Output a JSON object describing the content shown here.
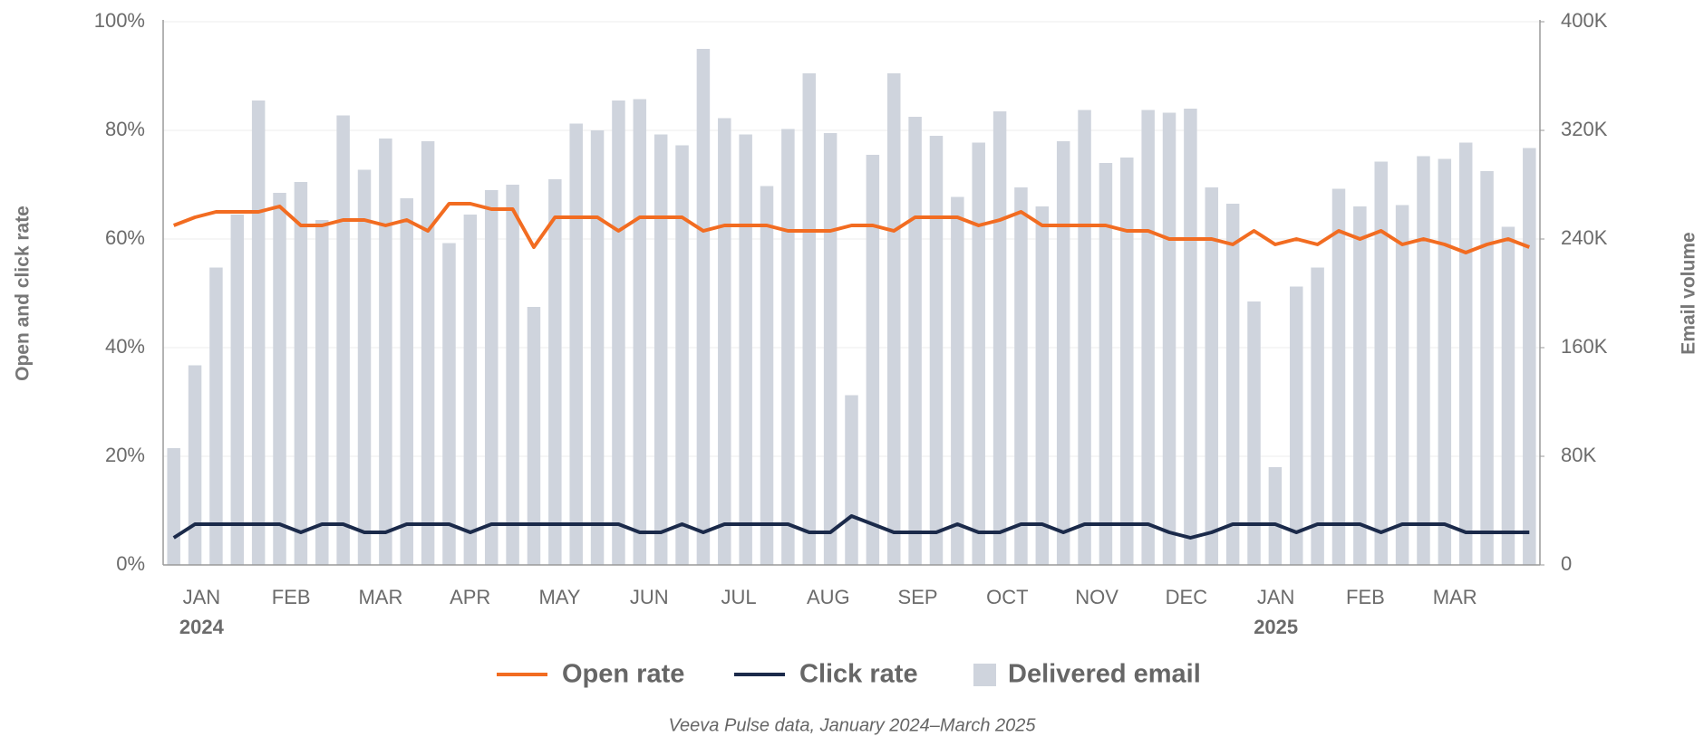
{
  "chart_data": {
    "type": "combo",
    "ylabel": "Open and click rate",
    "y2label": "Email volume",
    "note": "Veeva Pulse data, January 2024–March 2025",
    "months": [
      {
        "label": "JAN",
        "year": "2024"
      },
      {
        "label": "FEB"
      },
      {
        "label": "MAR"
      },
      {
        "label": "APR"
      },
      {
        "label": "MAY"
      },
      {
        "label": "JUN"
      },
      {
        "label": "JUL"
      },
      {
        "label": "AUG"
      },
      {
        "label": "SEP"
      },
      {
        "label": "OCT"
      },
      {
        "label": "NOV"
      },
      {
        "label": "DEC"
      },
      {
        "label": "JAN",
        "year": "2025"
      },
      {
        "label": "FEB"
      },
      {
        "label": "MAR"
      }
    ],
    "ylim": [
      0,
      100
    ],
    "yticks": [
      {
        "value": 0,
        "label": "0%"
      },
      {
        "value": 20,
        "label": "20%"
      },
      {
        "value": 40,
        "label": "40%"
      },
      {
        "value": 60,
        "label": "60%"
      },
      {
        "value": 80,
        "label": "80%"
      },
      {
        "value": 100,
        "label": "100%"
      }
    ],
    "y2lim": [
      0,
      400000
    ],
    "y2ticks": [
      0,
      {
        "value": 80000,
        "label": "80K"
      },
      {
        "value": 160000,
        "label": "160K"
      },
      {
        "value": 240000,
        "label": "240K"
      },
      {
        "value": 320000,
        "label": "320K"
      },
      {
        "value": 400000,
        "label": "400K"
      }
    ],
    "grid": true,
    "series": [
      {
        "name": "Open rate",
        "type": "line",
        "color": "#f26c21",
        "values": [
          62.5,
          64,
          65,
          65,
          65,
          66,
          62.5,
          62.5,
          63.5,
          63.5,
          62.5,
          63.5,
          61.5,
          66.5,
          66.5,
          65.5,
          65.5,
          58.5,
          64,
          64,
          64,
          61.5,
          64,
          64,
          64,
          61.5,
          62.5,
          62.5,
          62.5,
          61.5,
          61.5,
          61.5,
          62.5,
          62.5,
          61.5,
          64,
          64,
          64,
          62.5,
          63.5,
          65,
          62.5,
          62.5,
          62.5,
          62.5,
          61.5,
          61.5,
          60,
          60,
          60,
          59,
          61.5,
          59,
          60,
          59,
          61.5,
          60,
          61.5,
          59,
          60,
          59,
          57.5,
          59,
          60,
          58.5
        ]
      },
      {
        "name": "Click rate",
        "type": "line",
        "color": "#1b2a4a",
        "values": [
          5,
          7.5,
          7.5,
          7.5,
          7.5,
          7.5,
          6,
          7.5,
          7.5,
          6,
          6,
          7.5,
          7.5,
          7.5,
          6,
          7.5,
          7.5,
          7.5,
          7.5,
          7.5,
          7.5,
          7.5,
          6,
          6,
          7.5,
          6,
          7.5,
          7.5,
          7.5,
          7.5,
          6,
          6,
          9,
          7.5,
          6,
          6,
          6,
          7.5,
          6,
          6,
          7.5,
          7.5,
          6,
          7.5,
          7.5,
          7.5,
          7.5,
          6,
          5,
          6,
          7.5,
          7.5,
          7.5,
          6,
          7.5,
          7.5,
          7.5,
          6,
          7.5,
          7.5,
          7.5,
          6,
          6,
          6,
          6
        ]
      },
      {
        "name": "Delivered email",
        "type": "bar",
        "axis": "y2",
        "color": "#cfd4dd",
        "values": [
          86000,
          147000,
          219000,
          258000,
          342000,
          274000,
          282000,
          254000,
          331000,
          291000,
          314000,
          270000,
          312000,
          237000,
          258000,
          276000,
          280000,
          190000,
          284000,
          325000,
          320000,
          342000,
          343000,
          317000,
          309000,
          380000,
          329000,
          317000,
          279000,
          321000,
          362000,
          318000,
          125000,
          302000,
          362000,
          330000,
          316000,
          271000,
          311000,
          334000,
          278000,
          264000,
          312000,
          335000,
          296000,
          300000,
          335000,
          333000,
          336000,
          278000,
          266000,
          194000,
          72000,
          205000,
          219000,
          277000,
          264000,
          297000,
          265000,
          301000,
          299000,
          311000,
          290000,
          249000,
          307000
        ]
      }
    ]
  }
}
